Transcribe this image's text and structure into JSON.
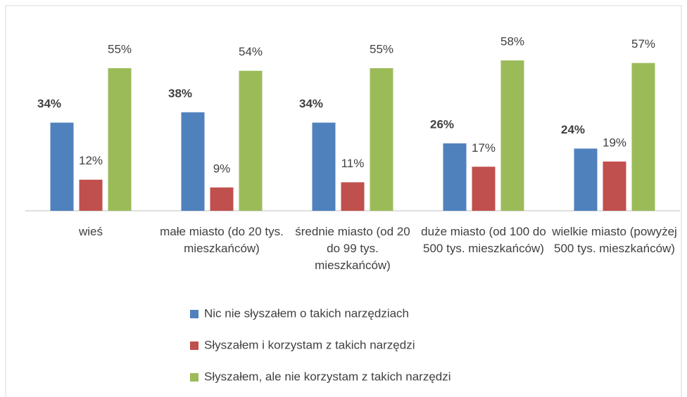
{
  "chart_data": {
    "type": "bar",
    "categories": [
      "wieś",
      "małe miasto (do 20 tys. mieszkańców)",
      "średnie miasto (od 20 do 99 tys. mieszkańców)",
      "duże miasto (od 100 do 500 tys. mieszkańców)",
      "wielkie miasto (powyżej 500 tys. mieszkańców)"
    ],
    "series": [
      {
        "name": "Nic nie słyszałem o takich narzędziach",
        "color": "#4f81bd",
        "values": [
          34,
          38,
          34,
          26,
          24
        ],
        "value_labels": [
          "34%",
          "38%",
          "34%",
          "26%",
          "24%"
        ]
      },
      {
        "name": "Słyszałem i korzystam z takich narzędzi",
        "color": "#c0504d",
        "values": [
          12,
          9,
          11,
          17,
          19
        ],
        "value_labels": [
          "12%",
          "9%",
          "11%",
          "17%",
          "19%"
        ]
      },
      {
        "name": "Słyszałem, ale nie korzystam z takich narzędzi",
        "color": "#9bbb59",
        "values": [
          55,
          54,
          55,
          58,
          57
        ],
        "value_labels": [
          "55%",
          "54%",
          "55%",
          "58%",
          "57%"
        ]
      }
    ],
    "legend": "bottom"
  }
}
